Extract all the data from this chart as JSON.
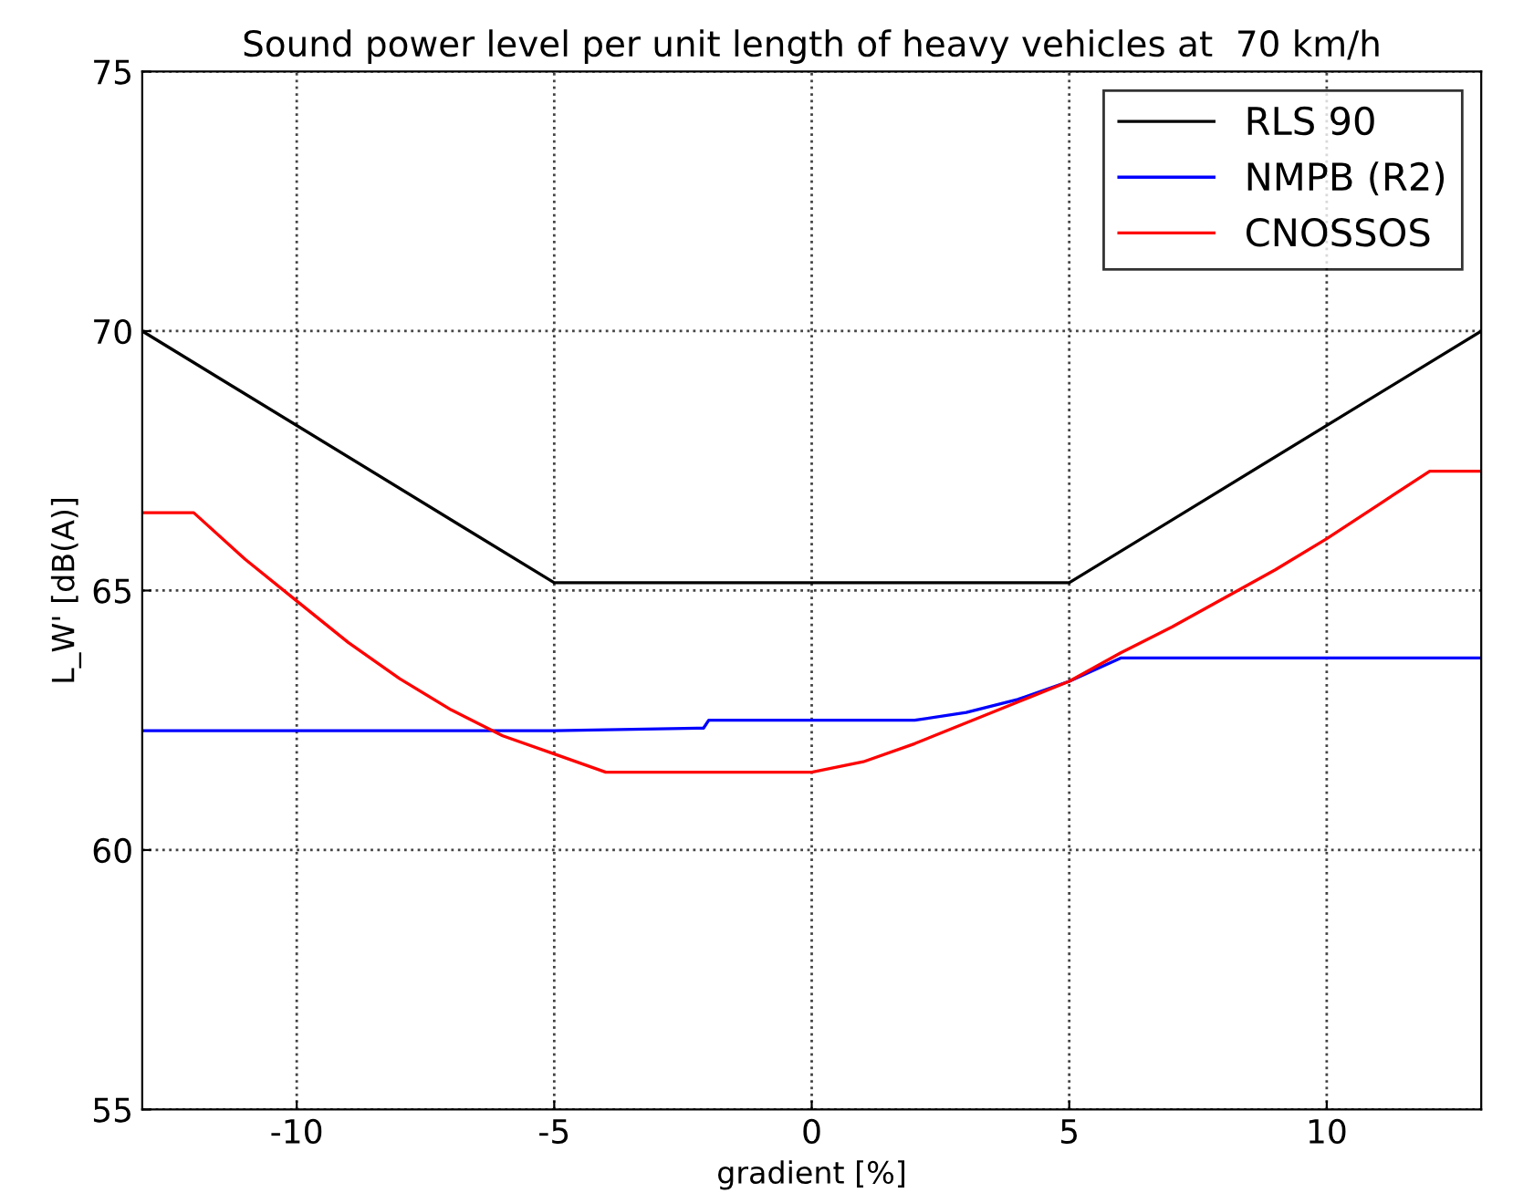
{
  "chart_data": {
    "type": "line",
    "title": "Sound power level per unit length of heavy vehicles at  70 km/h",
    "xlabel": "gradient [%]",
    "ylabel": "L_W' [dB(A)]",
    "series": [
      {
        "name": "RLS 90",
        "color": "#000000",
        "x": [
          -13,
          -5,
          5,
          13
        ],
        "values": [
          70,
          65.15,
          65.15,
          70
        ]
      },
      {
        "name": "NMPB (R2)",
        "color": "#0000ff",
        "x": [
          -13,
          -5,
          -2.1,
          -2,
          2,
          3,
          4,
          5,
          6,
          13
        ],
        "values": [
          62.3,
          62.3,
          62.35,
          62.5,
          62.5,
          62.65,
          62.9,
          63.25,
          63.7,
          63.7
        ]
      },
      {
        "name": "CNOSSOS",
        "color": "#ff0000",
        "x": [
          -13,
          -12,
          -11,
          -10,
          -9,
          -8,
          -7,
          -6,
          -5,
          -4,
          0,
          1,
          2,
          3,
          4,
          5,
          6,
          7,
          8,
          9,
          10,
          11,
          12,
          13
        ],
        "values": [
          66.5,
          66.5,
          65.6,
          64.8,
          64.0,
          63.3,
          62.7,
          62.2,
          61.85,
          61.5,
          61.5,
          61.7,
          62.05,
          62.45,
          62.85,
          63.25,
          63.8,
          64.3,
          64.85,
          65.4,
          66.0,
          66.65,
          67.3,
          67.3
        ]
      }
    ],
    "xlim": [
      -13,
      13
    ],
    "ylim": [
      55,
      75
    ],
    "xticks": [
      -10,
      -5,
      0,
      5,
      10
    ],
    "yticks": [
      55,
      60,
      65,
      70,
      75
    ],
    "grid": true,
    "legend": "top right",
    "line_style": "solid",
    "marker": "none"
  }
}
